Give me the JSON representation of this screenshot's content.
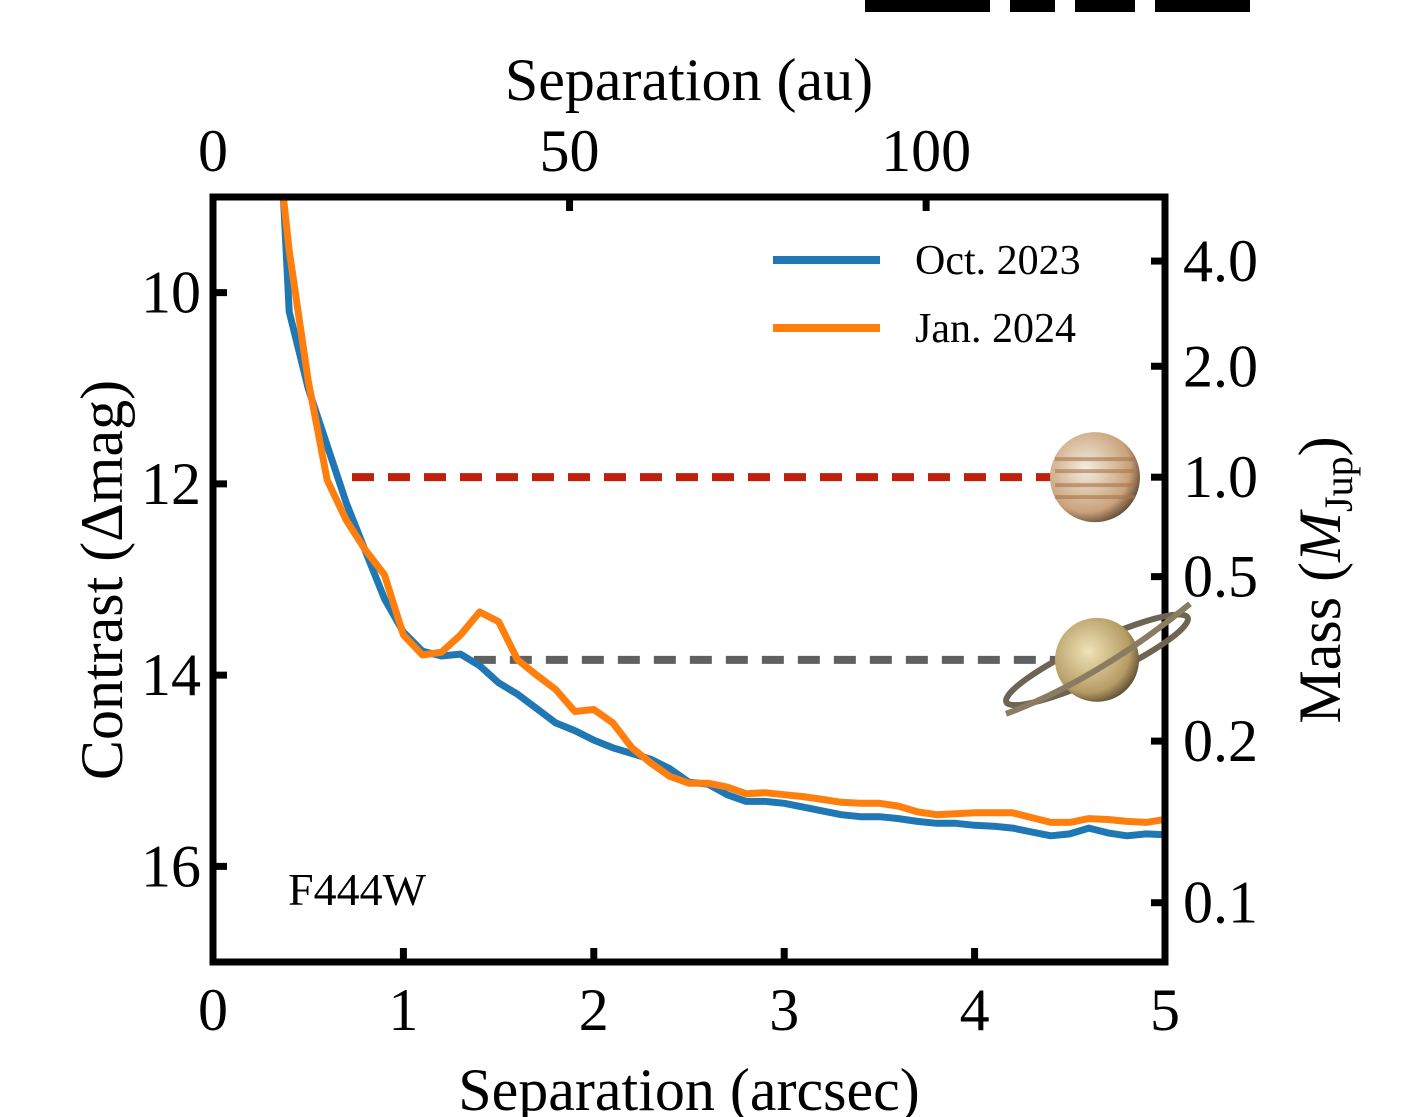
{
  "chart_data": {
    "type": "line",
    "title": "Separation (au)",
    "xlabel": "Separation (arcsec)",
    "ylabel": "Contrast (Δmag)",
    "y2label": {
      "prefix": "Mass (",
      "symbol": "M",
      "subscript": "Jup",
      "suffix": ")"
    },
    "annotation": "F444W",
    "x": [
      0.37,
      0.4,
      0.5,
      0.6,
      0.7,
      0.8,
      0.9,
      1.0,
      1.1,
      1.2,
      1.3,
      1.4,
      1.5,
      1.6,
      1.7,
      1.8,
      1.9,
      2.0,
      2.1,
      2.2,
      2.3,
      2.4,
      2.5,
      2.6,
      2.7,
      2.8,
      2.9,
      3.0,
      3.1,
      3.2,
      3.3,
      3.4,
      3.5,
      3.6,
      3.7,
      3.8,
      3.9,
      4.0,
      4.1,
      4.2,
      4.3,
      4.4,
      4.5,
      4.6,
      4.7,
      4.8,
      4.9,
      5.0
    ],
    "series": [
      {
        "name": "Oct. 2023",
        "color": "#1f77b4",
        "values": [
          9.0,
          10.2,
          11.0,
          11.6,
          12.2,
          12.7,
          13.2,
          13.55,
          13.75,
          13.8,
          13.78,
          13.9,
          14.08,
          14.2,
          14.35,
          14.5,
          14.58,
          14.68,
          14.76,
          14.82,
          14.88,
          14.98,
          15.12,
          15.14,
          15.25,
          15.32,
          15.32,
          15.34,
          15.38,
          15.42,
          15.46,
          15.48,
          15.48,
          15.5,
          15.53,
          15.55,
          15.55,
          15.57,
          15.58,
          15.6,
          15.64,
          15.68,
          15.66,
          15.6,
          15.65,
          15.68,
          15.66,
          15.67
        ]
      },
      {
        "name": "Jan. 2024",
        "color": "#ff7f0e",
        "values": [
          9.0,
          9.56,
          10.92,
          11.96,
          12.38,
          12.69,
          12.95,
          13.58,
          13.79,
          13.76,
          13.58,
          13.34,
          13.44,
          13.84,
          14.0,
          14.15,
          14.38,
          14.36,
          14.5,
          14.76,
          14.92,
          15.06,
          15.13,
          15.13,
          15.17,
          15.24,
          15.23,
          15.25,
          15.27,
          15.3,
          15.33,
          15.34,
          15.34,
          15.37,
          15.43,
          15.46,
          15.45,
          15.44,
          15.44,
          15.44,
          15.49,
          15.54,
          15.54,
          15.5,
          15.51,
          15.53,
          15.54,
          15.51
        ]
      }
    ],
    "xlim": [
      0,
      5
    ],
    "xticks": [
      0,
      1,
      2,
      3,
      4,
      5
    ],
    "x2lim": [
      0,
      133.5
    ],
    "x2ticks": [
      0,
      50,
      100
    ],
    "ylim": [
      9,
      17
    ],
    "y_inverted": true,
    "yticks": [
      10,
      12,
      14,
      16
    ],
    "y2ticks": [
      {
        "value": 4.0,
        "label": "4.0"
      },
      {
        "value": 2.0,
        "label": "2.0"
      },
      {
        "value": 1.0,
        "label": "1.0"
      },
      {
        "value": 0.5,
        "label": "0.5"
      },
      {
        "value": 0.2,
        "label": "0.2"
      },
      {
        "value": 0.1,
        "label": "0.1"
      }
    ],
    "y2tick_contrast": [
      9.67,
      10.77,
      11.93,
      12.97,
      14.69,
      16.38
    ],
    "reference_lines": [
      {
        "y": 11.93,
        "x": [
          0.73,
          4.55
        ],
        "color": "#c0200b"
      },
      {
        "y": 13.84,
        "x": [
          1.37,
          4.6
        ],
        "color": "#606060"
      }
    ],
    "legend": "upper right"
  }
}
